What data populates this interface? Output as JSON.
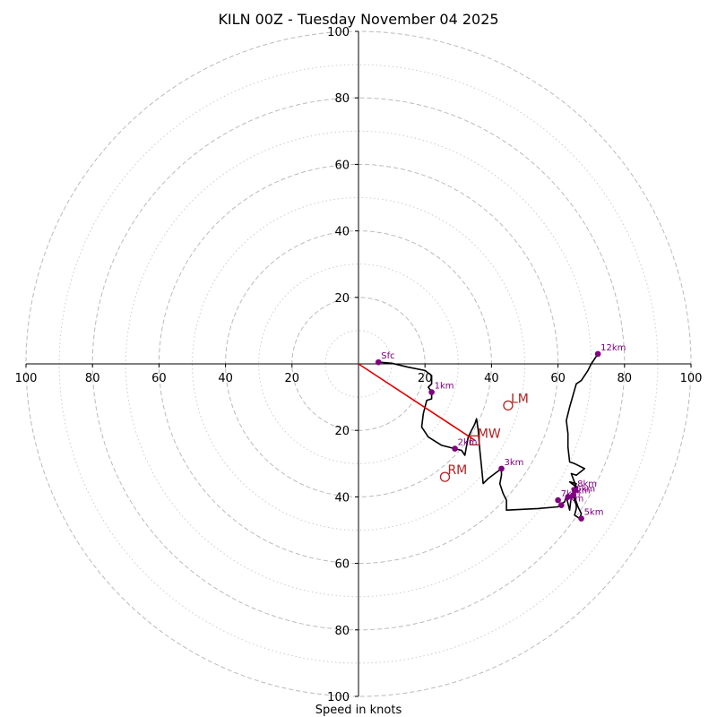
{
  "chart_data": {
    "type": "hodograph",
    "title": "KILN 00Z - Tuesday November 04 2025",
    "xlabel": "Speed in knots",
    "x_ticks": [
      "100",
      "80",
      "60",
      "40",
      "20",
      "20",
      "40",
      "60",
      "80",
      "100"
    ],
    "y_ticks": [
      "100",
      "80",
      "60",
      "40",
      "20",
      "20",
      "40",
      "60",
      "80",
      "100"
    ],
    "ring_radii_dashed": [
      20,
      40,
      60,
      80,
      100
    ],
    "ring_radii_dotted": [
      10,
      30,
      50,
      70,
      90
    ],
    "axis_range": [
      -100,
      100
    ],
    "colors": {
      "trace": "#000000",
      "height_marker": "#800080",
      "motion": "#b22222",
      "grid": "#bbbbbb"
    },
    "trace": [
      [
        6,
        0.5
      ],
      [
        10,
        0.2
      ],
      [
        15,
        -1
      ],
      [
        20,
        -2
      ],
      [
        22,
        -3.5
      ],
      [
        22,
        -6
      ],
      [
        21,
        -7
      ],
      [
        22,
        -8.5
      ],
      [
        22,
        -10.5
      ],
      [
        20.5,
        -11
      ],
      [
        19.5,
        -15
      ],
      [
        19,
        -19
      ],
      [
        21,
        -22
      ],
      [
        25,
        -24.5
      ],
      [
        29,
        -25.5
      ],
      [
        31,
        -26
      ],
      [
        32,
        -27.5
      ],
      [
        33,
        -22
      ],
      [
        34,
        -20
      ],
      [
        35,
        -18
      ],
      [
        35.5,
        -16.5
      ],
      [
        36,
        -20
      ],
      [
        36.5,
        -26
      ],
      [
        37,
        -31
      ],
      [
        37.5,
        -36
      ],
      [
        39,
        -34.5
      ],
      [
        41,
        -33
      ],
      [
        43,
        -31.5
      ],
      [
        43,
        -33.5
      ],
      [
        42.5,
        -36
      ],
      [
        43.5,
        -39
      ],
      [
        44.5,
        -41
      ],
      [
        44.5,
        -44
      ],
      [
        54,
        -43.5
      ],
      [
        60,
        -43
      ],
      [
        61,
        -42
      ],
      [
        62,
        -41.5
      ],
      [
        62.5,
        -40
      ],
      [
        63.5,
        -44
      ],
      [
        64,
        -40
      ],
      [
        64.5,
        -39.5
      ],
      [
        65,
        -41
      ],
      [
        65.5,
        -42.5
      ],
      [
        65.5,
        -43.5
      ],
      [
        65,
        -45.5
      ],
      [
        66.5,
        -46.5
      ],
      [
        67,
        -45
      ],
      [
        66,
        -43
      ],
      [
        64.5,
        -38.5
      ],
      [
        65.5,
        -36
      ],
      [
        63.5,
        -35.5
      ],
      [
        65.5,
        -37
      ],
      [
        64,
        -33
      ],
      [
        65.5,
        -33.5
      ],
      [
        68,
        -31.5
      ],
      [
        65,
        -30
      ],
      [
        63.5,
        -29.5
      ],
      [
        63,
        -25
      ],
      [
        63,
        -21
      ],
      [
        62.5,
        -17
      ],
      [
        63.5,
        -13
      ],
      [
        64.5,
        -9.5
      ],
      [
        65.5,
        -6
      ],
      [
        67,
        -5
      ],
      [
        69,
        -2
      ],
      [
        70,
        0
      ],
      [
        72,
        3
      ]
    ],
    "height_markers": [
      {
        "label": "Sfc",
        "u": 6,
        "v": 0.5
      },
      {
        "label": "1km",
        "u": 22,
        "v": -8.5
      },
      {
        "label": "2km",
        "u": 29,
        "v": -25.5
      },
      {
        "label": "3km",
        "u": 43,
        "v": -31.5
      },
      {
        "label": "4km",
        "u": 61,
        "v": -42.5
      },
      {
        "label": "5km",
        "u": 67,
        "v": -46.5
      },
      {
        "label": "6km",
        "u": 64.5,
        "v": -39.5
      },
      {
        "label": "7km",
        "u": 60,
        "v": -41
      },
      {
        "label": "8km",
        "u": 65,
        "v": -38
      },
      {
        "label": "9km",
        "u": 63,
        "v": -40
      },
      {
        "label": "12km",
        "u": 72,
        "v": 3
      }
    ],
    "storm_motions": [
      {
        "label": "LM",
        "u": 45,
        "v": -12.5
      },
      {
        "label": "MW",
        "u": 35,
        "v": -23
      },
      {
        "label": "RM",
        "u": 26,
        "v": -34
      }
    ],
    "shear_vector": {
      "from": [
        0,
        0
      ],
      "to": [
        35,
        -23
      ]
    }
  }
}
